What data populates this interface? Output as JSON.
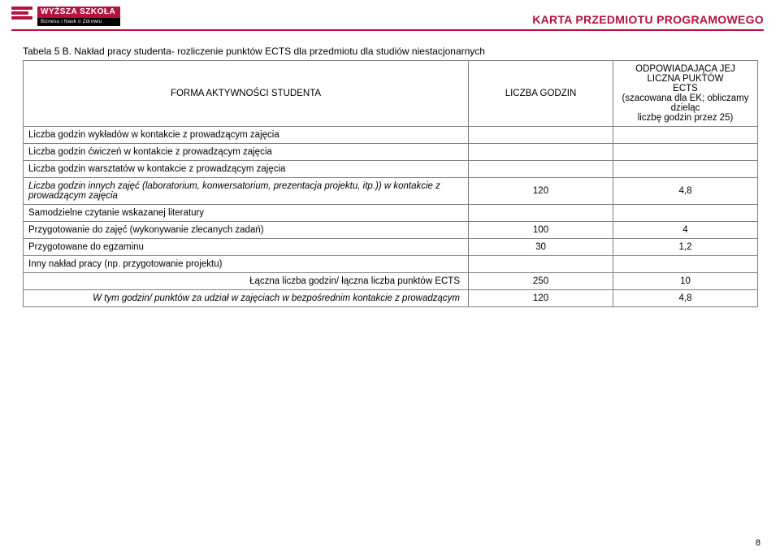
{
  "header": {
    "logo_top": "WYŻSZA SZKOŁA",
    "logo_sub": "Biznesu i Nauk o Zdrowiu",
    "doc_title": "KARTA PRZEDMIOTU PROGRAMOWEGO"
  },
  "caption": "Tabela 5 B. Nakład pracy studenta- rozliczenie punktów ECTS dla przedmiotu dla studiów niestacjonarnych",
  "table": {
    "head": {
      "col1": "FORMA AKTYWNOŚCI STUDENTA",
      "col2": "LICZBA GODZIN",
      "col3_l1": "ODPOWIADAJĄCA JEJ LICZNA PUKTÓW",
      "col3_l2": "ECTS",
      "col3_l3": "(szacowana dla EK; obliczamy dzieląc",
      "col3_l4": "liczbę godzin przez 25)"
    },
    "rows": [
      {
        "label": "Liczba godzin wykładów w kontakcie z prowadzącym zajęcia",
        "italic": false,
        "v1": "",
        "v2": ""
      },
      {
        "label": "Liczba godzin ćwiczeń w kontakcie z prowadzącym zajęcia",
        "italic": false,
        "v1": "",
        "v2": ""
      },
      {
        "label": "Liczba godzin warsztatów w kontakcie z prowadzącym zajęcia",
        "italic": false,
        "v1": "",
        "v2": ""
      },
      {
        "label": "Liczba godzin innych zajęć (laboratorium, konwersatorium, prezentacja projektu, itp.)) w kontakcie  z prowadzącym zajęcia",
        "italic": true,
        "v1": "120",
        "v2": "4,8"
      },
      {
        "label": "Samodzielne czytanie wskazanej literatury",
        "italic": false,
        "v1": "",
        "v2": ""
      },
      {
        "label": "Przygotowanie do zajęć (wykonywanie zlecanych zadań)",
        "italic": false,
        "v1": "100",
        "v2": "4"
      },
      {
        "label": "Przygotowane do egzaminu",
        "italic": false,
        "v1": "30",
        "v2": "1,2"
      },
      {
        "label": "Inny nakład pracy (np. przygotowanie projektu)",
        "italic": false,
        "v1": "",
        "v2": ""
      }
    ],
    "summary": [
      {
        "label": "Łączna liczba godzin/ łączna liczba punktów ECTS",
        "italic": false,
        "v1": "250",
        "v2": "10"
      },
      {
        "label": "W tym godzin/ punktów za udział w zajęciach w bezpośrednim kontakcie z prowadzącym",
        "italic": true,
        "v1": "120",
        "v2": "4,8"
      }
    ]
  },
  "page_number": "8",
  "colors": {
    "brand": "#b5123e",
    "border": "#7f7f7f",
    "text": "#000000",
    "bg": "#ffffff"
  }
}
